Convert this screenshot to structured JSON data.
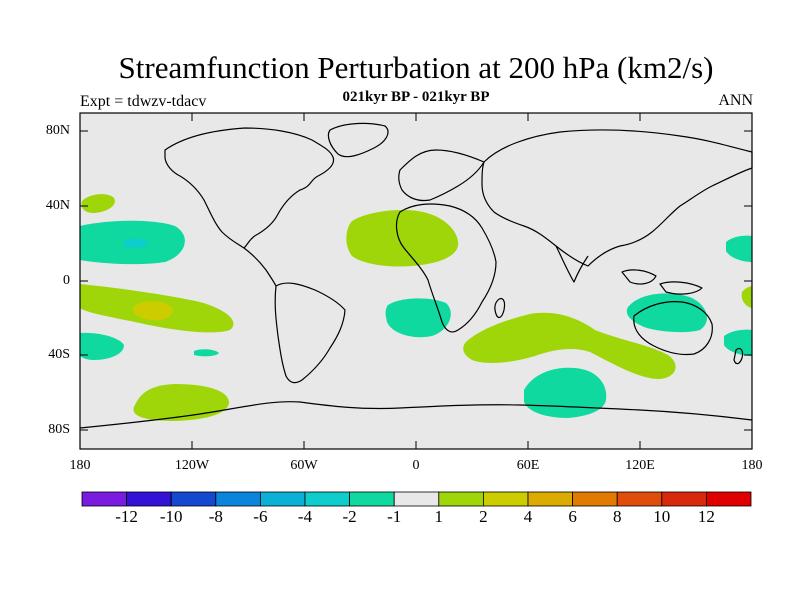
{
  "title": "Streamfunction Perturbation at 200 hPa (km2/s)",
  "subtitle": "021kyr BP - 021kyr BP",
  "left_string": "Expt = tdwzv-tdacv",
  "right_string": "ANN",
  "lat_labels": [
    "80N",
    "40N",
    "0",
    "40S",
    "80S"
  ],
  "lon_labels": [
    "180",
    "120W",
    "60W",
    "0",
    "60E",
    "120E",
    "180"
  ],
  "colorbar": {
    "labels": [
      "-12",
      "-10",
      "-8",
      "-6",
      "-4",
      "-2",
      "-1",
      "1",
      "2",
      "4",
      "6",
      "8",
      "10",
      "12"
    ],
    "colors": [
      "#7a1be0",
      "#3311d6",
      "#1448cf",
      "#0a85db",
      "#0bb0d6",
      "#0ecdcd",
      "#10d9a0",
      "#e8e8e8",
      "#9ed60a",
      "#cccc00",
      "#dbab00",
      "#e07a00",
      "#e04d0a",
      "#d9290d",
      "#e00000"
    ]
  },
  "colors": {
    "ocean": "#e8e8e8",
    "pos_1_2": "#9ed60a",
    "pos_2_4": "#cccc00",
    "neg_1_2": "#10d9a0",
    "neg_2_4": "#0ecdcd"
  }
}
